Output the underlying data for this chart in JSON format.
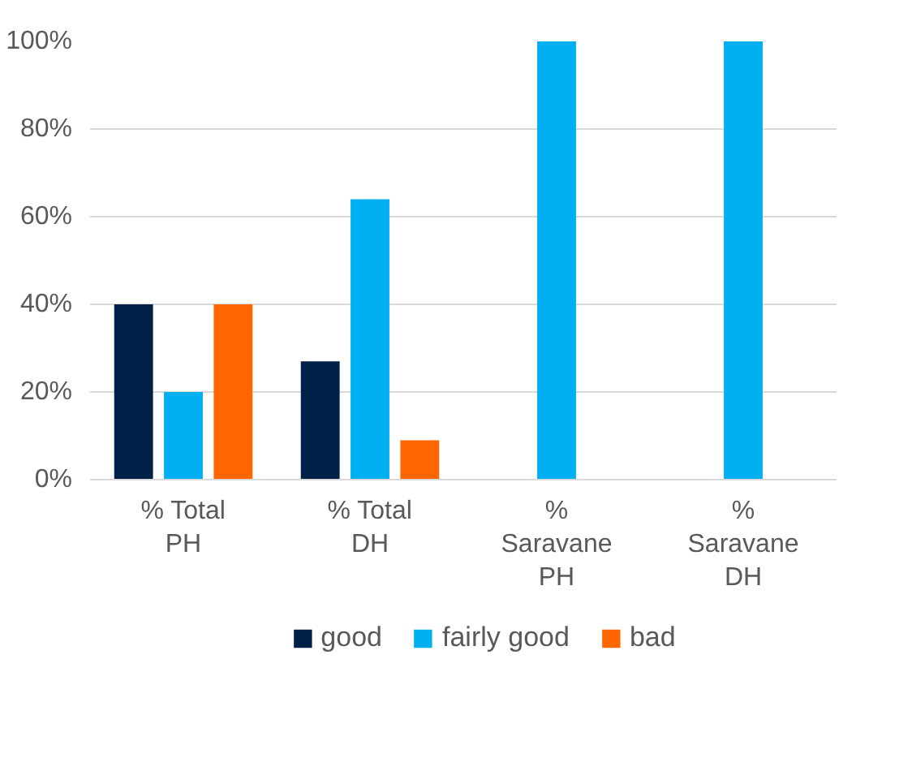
{
  "chart_data": {
    "type": "bar",
    "categories": [
      "% Total\nPH",
      "% Total\nDH",
      "%\nSaravane\nPH",
      "%\nSaravane\nDH"
    ],
    "series": [
      {
        "name": "good",
        "color": "#002147",
        "values": [
          40,
          27,
          null,
          null
        ]
      },
      {
        "name": "fairly good",
        "color": "#00b0f0",
        "values": [
          20,
          64,
          100,
          100
        ]
      },
      {
        "name": "bad",
        "color": "#ff6600",
        "values": [
          40,
          9,
          null,
          null
        ]
      }
    ],
    "ylim": [
      0,
      100
    ],
    "yticks": [
      {
        "value": 0,
        "label": "0%"
      },
      {
        "value": 20,
        "label": "20%"
      },
      {
        "value": 40,
        "label": "40%"
      },
      {
        "value": 60,
        "label": "60%"
      },
      {
        "value": 80,
        "label": "80%"
      },
      {
        "value": 100,
        "label": "100%"
      }
    ],
    "grid": "y",
    "legend": "bottom"
  }
}
